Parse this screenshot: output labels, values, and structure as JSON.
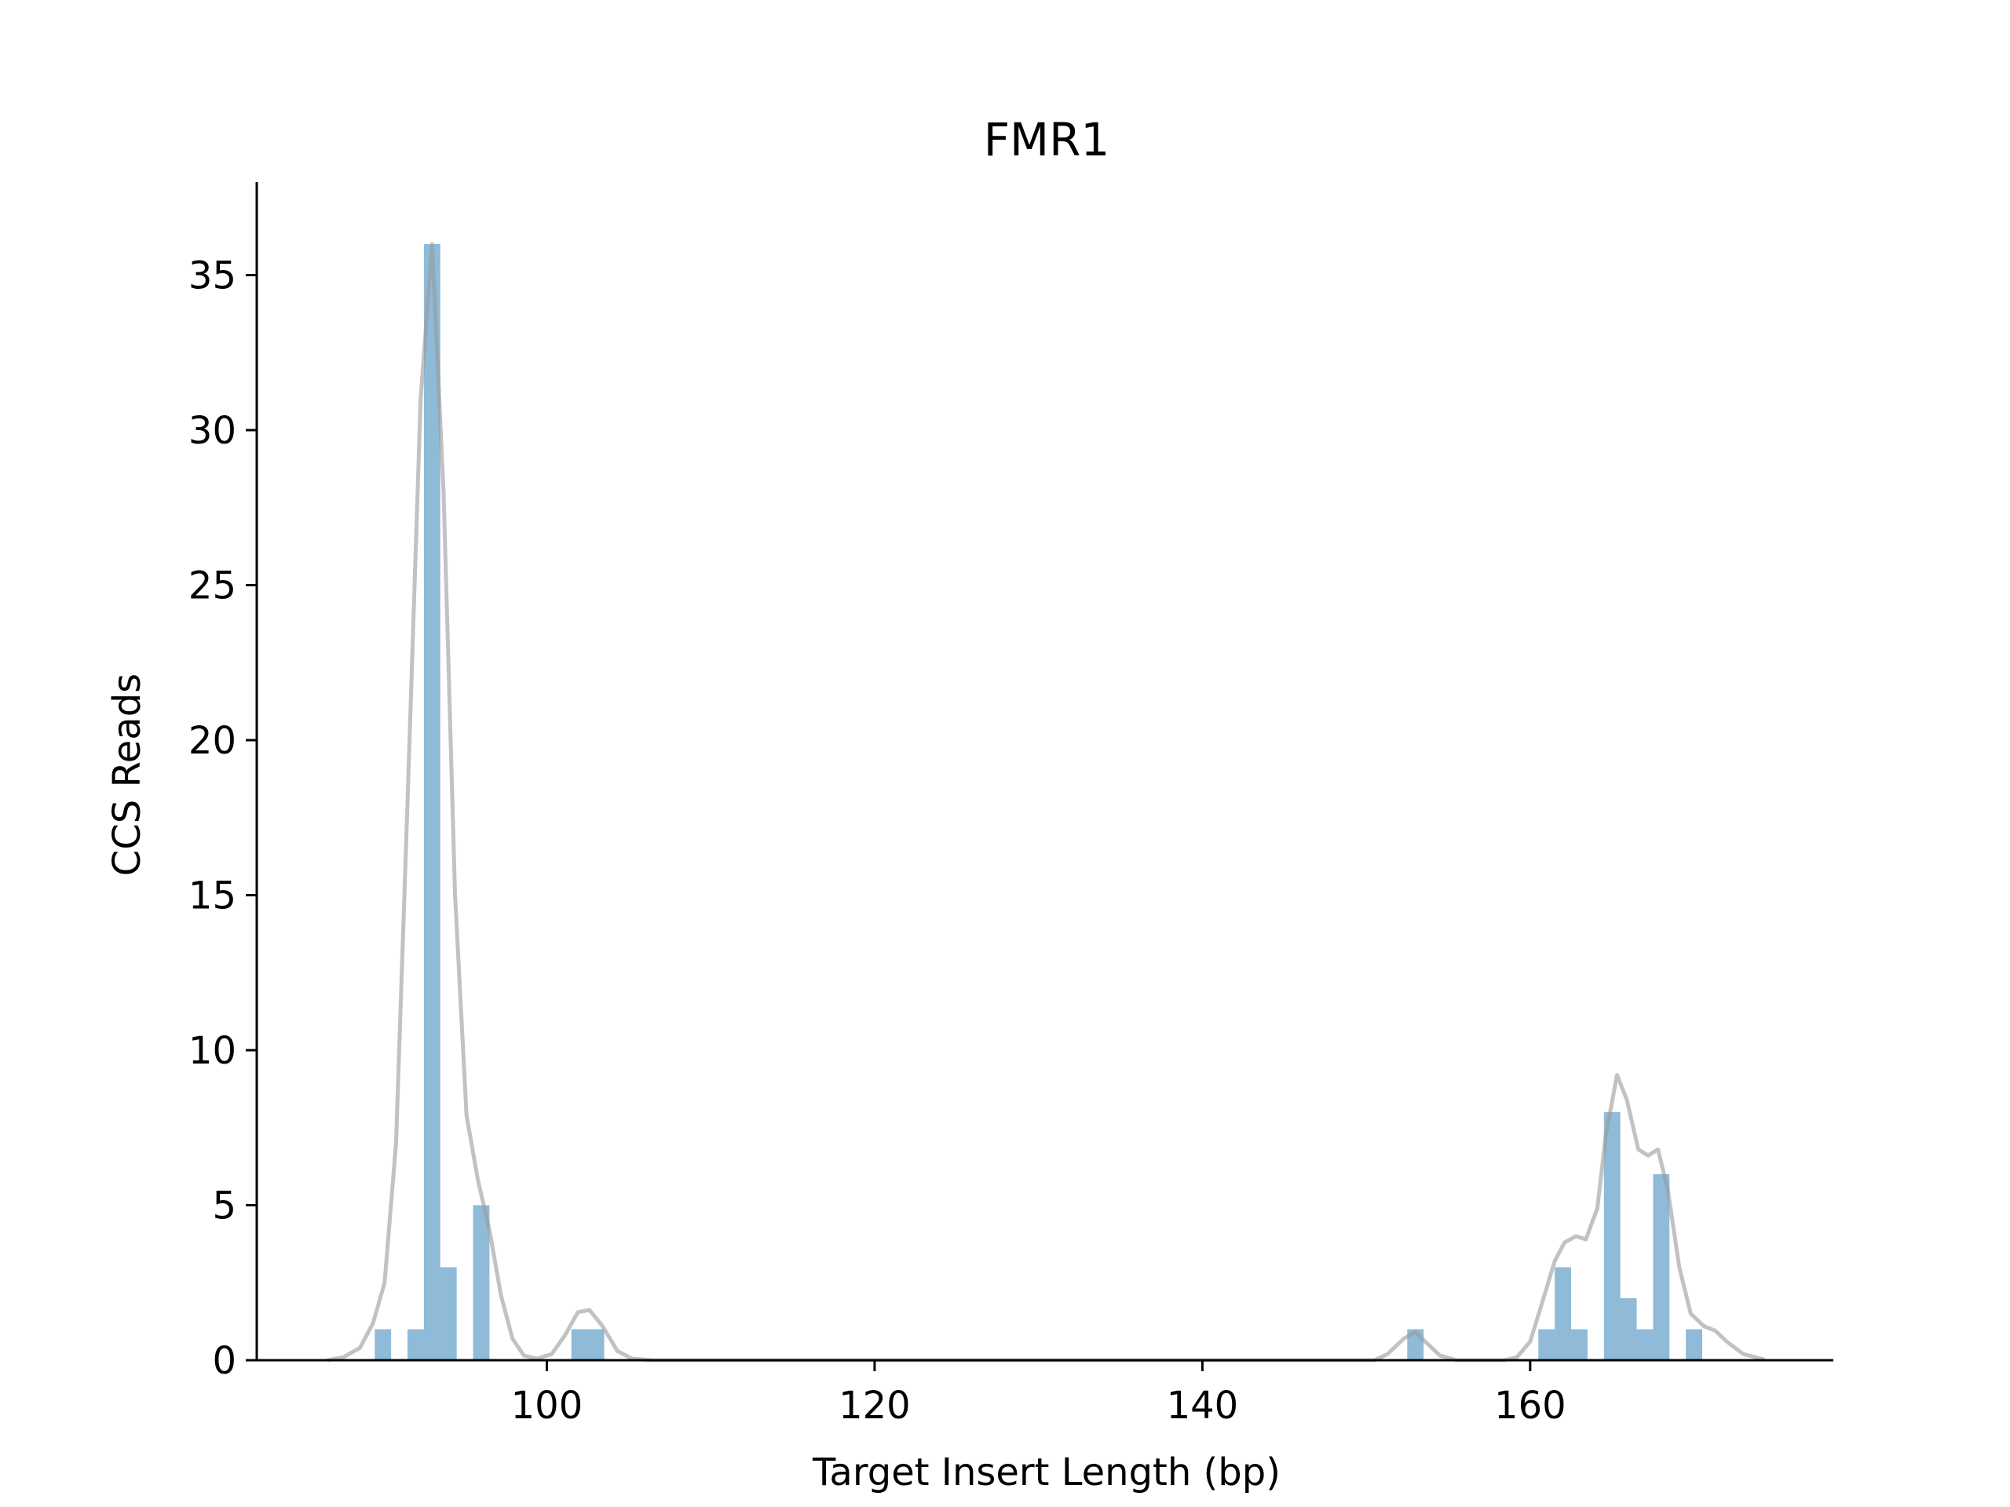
{
  "chart_data": {
    "type": "bar",
    "title": "FMR1",
    "xlabel": "Target Insert Length (bp)",
    "ylabel": "CCS Reads",
    "xlim": [
      82.3,
      178.5
    ],
    "ylim": [
      0,
      38
    ],
    "xticks": [
      100,
      120,
      140,
      160
    ],
    "yticks": [
      0,
      5,
      10,
      15,
      20,
      25,
      30,
      35
    ],
    "grid": false,
    "bin_width": 1,
    "colors": {
      "bars": "#1f77b4",
      "density": "#999999",
      "axis": "#000000"
    },
    "series": [
      {
        "kind": "histogram",
        "bins": [
          {
            "x0": 89.5,
            "x1": 90.5,
            "count": 1
          },
          {
            "x0": 91.5,
            "x1": 92.5,
            "count": 1
          },
          {
            "x0": 92.5,
            "x1": 93.5,
            "count": 36
          },
          {
            "x0": 93.5,
            "x1": 94.5,
            "count": 3
          },
          {
            "x0": 95.5,
            "x1": 96.5,
            "count": 5
          },
          {
            "x0": 101.5,
            "x1": 102.5,
            "count": 1
          },
          {
            "x0": 102.5,
            "x1": 103.5,
            "count": 1
          },
          {
            "x0": 152.5,
            "x1": 153.5,
            "count": 1
          },
          {
            "x0": 160.5,
            "x1": 161.5,
            "count": 1
          },
          {
            "x0": 161.5,
            "x1": 162.5,
            "count": 3
          },
          {
            "x0": 162.5,
            "x1": 163.5,
            "count": 1
          },
          {
            "x0": 164.5,
            "x1": 165.5,
            "count": 8
          },
          {
            "x0": 165.5,
            "x1": 166.5,
            "count": 2
          },
          {
            "x0": 166.5,
            "x1": 167.5,
            "count": 1
          },
          {
            "x0": 167.5,
            "x1": 168.5,
            "count": 6
          },
          {
            "x0": 169.5,
            "x1": 170.5,
            "count": 1
          }
        ]
      },
      {
        "kind": "density",
        "points": [
          [
            86.6,
            0
          ],
          [
            87.6,
            0.1
          ],
          [
            88.6,
            0.4
          ],
          [
            89.4,
            1.2
          ],
          [
            90.1,
            2.5
          ],
          [
            90.8,
            7.0
          ],
          [
            91.5,
            18.0
          ],
          [
            92.3,
            31.0
          ],
          [
            93.0,
            36.0
          ],
          [
            93.7,
            28.0
          ],
          [
            94.4,
            15.0
          ],
          [
            95.1,
            7.9
          ],
          [
            95.8,
            5.8
          ],
          [
            96.5,
            4.2
          ],
          [
            97.2,
            2.1
          ],
          [
            97.9,
            0.7
          ],
          [
            98.6,
            0.15
          ],
          [
            99.4,
            0.05
          ],
          [
            100.3,
            0.2
          ],
          [
            101.1,
            0.8
          ],
          [
            101.9,
            1.55
          ],
          [
            102.6,
            1.62
          ],
          [
            103.4,
            1.1
          ],
          [
            104.3,
            0.3
          ],
          [
            105.2,
            0.05
          ],
          [
            106.4,
            0
          ],
          [
            150.5,
            0
          ],
          [
            151.3,
            0.2
          ],
          [
            152.3,
            0.7
          ],
          [
            153.0,
            0.9
          ],
          [
            153.6,
            0.6
          ],
          [
            154.5,
            0.15
          ],
          [
            155.5,
            0
          ],
          [
            158.4,
            0
          ],
          [
            159.2,
            0.1
          ],
          [
            160.0,
            0.6
          ],
          [
            160.7,
            1.8
          ],
          [
            161.5,
            3.2
          ],
          [
            162.1,
            3.8
          ],
          [
            162.8,
            4.0
          ],
          [
            163.4,
            3.9
          ],
          [
            164.1,
            4.9
          ],
          [
            164.6,
            7.2
          ],
          [
            165.3,
            9.2
          ],
          [
            165.9,
            8.4
          ],
          [
            166.6,
            6.8
          ],
          [
            167.2,
            6.6
          ],
          [
            167.8,
            6.8
          ],
          [
            168.4,
            5.5
          ],
          [
            169.1,
            3.0
          ],
          [
            169.8,
            1.5
          ],
          [
            170.6,
            1.1
          ],
          [
            171.3,
            0.95
          ],
          [
            172.0,
            0.6
          ],
          [
            173.0,
            0.2
          ],
          [
            174.3,
            0.02
          ]
        ]
      }
    ]
  }
}
